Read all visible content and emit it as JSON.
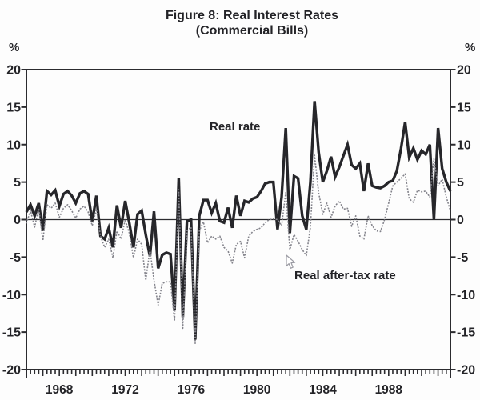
{
  "figure": {
    "title_line1": "Figure 8: Real Interest Rates",
    "title_line2": "(Commercial Bills)",
    "y_axis_unit_left": "%",
    "y_axis_unit_right": "%",
    "annotations": {
      "real_rate_label": "Real rate",
      "after_tax_label": "Real after-tax rate"
    }
  },
  "colors": {
    "real_rate_line": "#26262a",
    "after_tax_line": "#83838b",
    "axis": "#2b2b2f",
    "text": "#232327",
    "background": "#fdfdfd"
  },
  "chart_data": {
    "type": "line",
    "title": "Figure 8: Real Interest Rates",
    "subtitle": "(Commercial Bills)",
    "frequency": "quarterly",
    "x_start_year": 1966,
    "x_end_year": 1991,
    "ylim": [
      -20,
      20
    ],
    "y_ticks": [
      20,
      15,
      10,
      5,
      0,
      -5,
      -10,
      -15,
      -20
    ],
    "y_tick_unit": "%",
    "x_year_labels": [
      1968,
      1972,
      1976,
      1980,
      1984,
      1988
    ],
    "zero_line": true,
    "grid": false,
    "legend_position": "inline-annotations",
    "series": [
      {
        "name": "Real rate",
        "style": "solid-thick",
        "color": "#26262a",
        "values": [
          1.0,
          2.0,
          0.5,
          2.2,
          -1.5,
          3.8,
          3.3,
          3.9,
          1.8,
          3.4,
          3.8,
          3.2,
          2.2,
          3.5,
          3.8,
          3.4,
          -0.3,
          3.2,
          -2.2,
          -2.6,
          -1.1,
          -3.7,
          1.9,
          -1.1,
          2.5,
          -0.4,
          -3.7,
          0.7,
          1.2,
          -2.0,
          -4.9,
          1.1,
          -6.5,
          -4.7,
          -4.4,
          -4.6,
          -12.1,
          5.5,
          -13.0,
          -0.2,
          0.0,
          -16.0,
          0.5,
          2.6,
          2.6,
          0.9,
          2.2,
          -0.2,
          -0.4,
          1.6,
          -1.1,
          3.2,
          0.5,
          2.5,
          2.3,
          2.8,
          3.0,
          3.8,
          4.8,
          5.0,
          5.0,
          -1.3,
          3.0,
          12.2,
          -1.8,
          5.8,
          5.5,
          0.5,
          -1.3,
          5.0,
          15.8,
          9.0,
          5.0,
          6.5,
          8.4,
          5.7,
          7.0,
          8.5,
          10.0,
          7.3,
          6.8,
          7.5,
          3.8,
          7.5,
          4.5,
          4.3,
          4.2,
          4.5,
          5.0,
          5.2,
          6.5,
          9.5,
          13.0,
          8.3,
          9.5,
          8.0,
          9.2,
          8.7,
          10.0,
          0.0,
          12.2,
          6.8,
          5.0,
          3.8
        ]
      },
      {
        "name": "Real after-tax rate",
        "style": "dotted-thin",
        "color": "#83838b",
        "values": [
          -0.5,
          1.2,
          -1.0,
          1.5,
          -2.8,
          2.0,
          1.5,
          2.2,
          0.3,
          1.5,
          2.0,
          1.2,
          0.2,
          1.4,
          1.8,
          1.0,
          -0.8,
          1.4,
          -2.2,
          -3.7,
          -2.6,
          -5.1,
          -1.5,
          -2.6,
          0.0,
          -1.8,
          -5.1,
          -2.6,
          -3.3,
          -8.1,
          -4.0,
          -8.1,
          -11.4,
          -8.5,
          -8.3,
          -8.3,
          -13.5,
          4.0,
          -14.5,
          -1.5,
          -1.0,
          -16.5,
          -1.5,
          -0.3,
          -3.1,
          -2.2,
          -2.6,
          -2.2,
          -3.7,
          -4.2,
          -5.8,
          -3.3,
          -2.9,
          -5.1,
          -2.2,
          -1.6,
          -1.3,
          -1.1,
          -0.4,
          0.0,
          0.1,
          0.0,
          -0.8,
          3.6,
          -4.0,
          -2.0,
          -2.9,
          -4.0,
          -4.8,
          -1.0,
          8.6,
          3.6,
          0.7,
          2.2,
          0.3,
          1.8,
          2.5,
          1.4,
          1.5,
          -0.9,
          0.5,
          -2.2,
          -2.6,
          0.5,
          -0.8,
          -1.5,
          -1.6,
          0.0,
          2.2,
          4.5,
          5.0,
          5.5,
          6.1,
          2.8,
          2.3,
          3.9,
          3.7,
          3.8,
          3.0,
          8.1,
          4.5,
          5.4,
          3.0,
          1.2
        ]
      }
    ]
  }
}
